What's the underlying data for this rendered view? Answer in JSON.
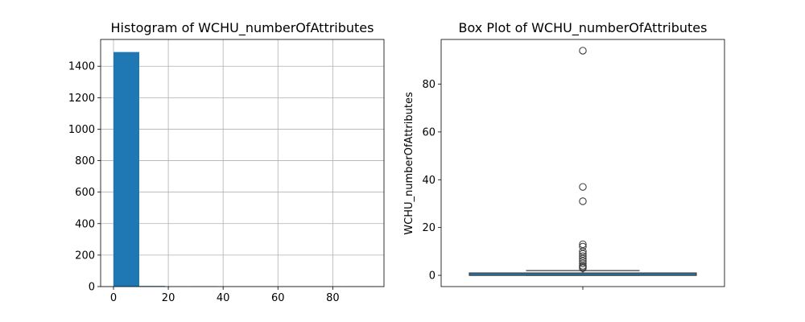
{
  "chart_data": [
    {
      "type": "bar",
      "title": "Histogram of WCHU_numberOfAttributes",
      "xlabel": "",
      "ylabel": "",
      "bins": [
        {
          "x0": 0,
          "x1": 9.4,
          "count": 1490
        },
        {
          "x0": 9.4,
          "x1": 18.8,
          "count": 4
        },
        {
          "x0": 18.8,
          "x1": 28.2,
          "count": 0
        },
        {
          "x0": 28.2,
          "x1": 37.6,
          "count": 2
        },
        {
          "x0": 37.6,
          "x1": 47.0,
          "count": 0
        },
        {
          "x0": 47.0,
          "x1": 56.4,
          "count": 0
        },
        {
          "x0": 56.4,
          "x1": 65.8,
          "count": 0
        },
        {
          "x0": 65.8,
          "x1": 75.2,
          "count": 0
        },
        {
          "x0": 75.2,
          "x1": 84.6,
          "count": 0
        },
        {
          "x0": 84.6,
          "x1": 94.0,
          "count": 1
        }
      ],
      "xlim": [
        -4.7,
        98.7
      ],
      "ylim": [
        0,
        1570
      ],
      "xticks": [
        0,
        20,
        40,
        60,
        80
      ],
      "xtick_labels": [
        "0",
        "20",
        "40",
        "60",
        "80"
      ],
      "yticks": [
        0,
        200,
        400,
        600,
        800,
        1000,
        1200,
        1400
      ],
      "ytick_labels": [
        "0",
        "200",
        "400",
        "600",
        "800",
        "1000",
        "1200",
        "1400"
      ],
      "grid": true,
      "color": "#1f77b4"
    },
    {
      "type": "box",
      "title": "Box Plot of WCHU_numberOfAttributes",
      "xlabel": "",
      "ylabel": "WCHU_numberOfAttributes",
      "stats": {
        "whisker_low": 0,
        "q1": 0,
        "median": 0,
        "q3": 1,
        "whisker_high": 2
      },
      "outliers": [
        94,
        37,
        31,
        13,
        12,
        10,
        9,
        8,
        7,
        6,
        5,
        4,
        3.5,
        3
      ],
      "ylim": [
        -4.7,
        98.7
      ],
      "yticks": [
        0,
        20,
        40,
        60,
        80
      ],
      "ytick_labels": [
        "0",
        "20",
        "40",
        "60",
        "80"
      ],
      "grid": false,
      "color": "#1f77b4"
    }
  ]
}
